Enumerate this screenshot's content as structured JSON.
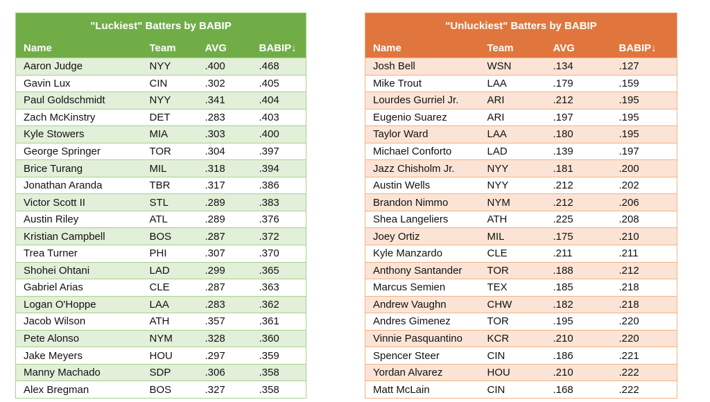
{
  "colors": {
    "lucky_header": "#70ad47",
    "lucky_band": "#e2efd9",
    "unlucky_header": "#e0763d",
    "unlucky_band": "#fbe4d5"
  },
  "lucky": {
    "title": "\"Luckiest\" Batters by BABIP",
    "columns": [
      "Name",
      "Team",
      "AVG",
      "BABIP↓"
    ],
    "rows": [
      [
        "Aaron Judge",
        "NYY",
        ".400",
        ".468"
      ],
      [
        "Gavin Lux",
        "CIN",
        ".302",
        ".405"
      ],
      [
        "Paul Goldschmidt",
        "NYY",
        ".341",
        ".404"
      ],
      [
        "Zach McKinstry",
        "DET",
        ".283",
        ".403"
      ],
      [
        "Kyle Stowers",
        "MIA",
        ".303",
        ".400"
      ],
      [
        "George Springer",
        "TOR",
        ".304",
        ".397"
      ],
      [
        "Brice Turang",
        "MIL",
        ".318",
        ".394"
      ],
      [
        "Jonathan Aranda",
        "TBR",
        ".317",
        ".386"
      ],
      [
        "Victor Scott II",
        "STL",
        ".289",
        ".383"
      ],
      [
        "Austin Riley",
        "ATL",
        ".289",
        ".376"
      ],
      [
        "Kristian Campbell",
        "BOS",
        ".287",
        ".372"
      ],
      [
        "Trea Turner",
        "PHI",
        ".307",
        ".370"
      ],
      [
        "Shohei Ohtani",
        "LAD",
        ".299",
        ".365"
      ],
      [
        "Gabriel Arias",
        "CLE",
        ".287",
        ".363"
      ],
      [
        "Logan O'Hoppe",
        "LAA",
        ".283",
        ".362"
      ],
      [
        "Jacob Wilson",
        "ATH",
        ".357",
        ".361"
      ],
      [
        "Pete Alonso",
        "NYM",
        ".328",
        ".360"
      ],
      [
        "Jake Meyers",
        "HOU",
        ".297",
        ".359"
      ],
      [
        "Manny Machado",
        "SDP",
        ".306",
        ".358"
      ],
      [
        "Alex Bregman",
        "BOS",
        ".327",
        ".358"
      ]
    ]
  },
  "unlucky": {
    "title": "\"Unluckiest\" Batters by BABIP",
    "columns": [
      "Name",
      "Team",
      "AVG",
      "BABIP↓"
    ],
    "rows": [
      [
        "Josh Bell",
        "WSN",
        ".134",
        ".127"
      ],
      [
        "Mike Trout",
        "LAA",
        ".179",
        ".159"
      ],
      [
        "Lourdes Gurriel Jr.",
        "ARI",
        ".212",
        ".195"
      ],
      [
        "Eugenio Suarez",
        "ARI",
        ".197",
        ".195"
      ],
      [
        "Taylor Ward",
        "LAA",
        ".180",
        ".195"
      ],
      [
        "Michael Conforto",
        "LAD",
        ".139",
        ".197"
      ],
      [
        "Jazz Chisholm Jr.",
        "NYY",
        ".181",
        ".200"
      ],
      [
        "Austin Wells",
        "NYY",
        ".212",
        ".202"
      ],
      [
        "Brandon Nimmo",
        "NYM",
        ".212",
        ".206"
      ],
      [
        "Shea Langeliers",
        "ATH",
        ".225",
        ".208"
      ],
      [
        "Joey Ortiz",
        "MIL",
        ".175",
        ".210"
      ],
      [
        "Kyle Manzardo",
        "CLE",
        ".211",
        ".211"
      ],
      [
        "Anthony Santander",
        "TOR",
        ".188",
        ".212"
      ],
      [
        "Marcus Semien",
        "TEX",
        ".185",
        ".218"
      ],
      [
        "Andrew Vaughn",
        "CHW",
        ".182",
        ".218"
      ],
      [
        "Andres Gimenez",
        "TOR",
        ".195",
        ".220"
      ],
      [
        "Vinnie Pasquantino",
        "KCR",
        ".210",
        ".220"
      ],
      [
        "Spencer Steer",
        "CIN",
        ".186",
        ".221"
      ],
      [
        "Yordan Alvarez",
        "HOU",
        ".210",
        ".222"
      ],
      [
        "Matt McLain",
        "CIN",
        ".168",
        ".222"
      ]
    ]
  }
}
